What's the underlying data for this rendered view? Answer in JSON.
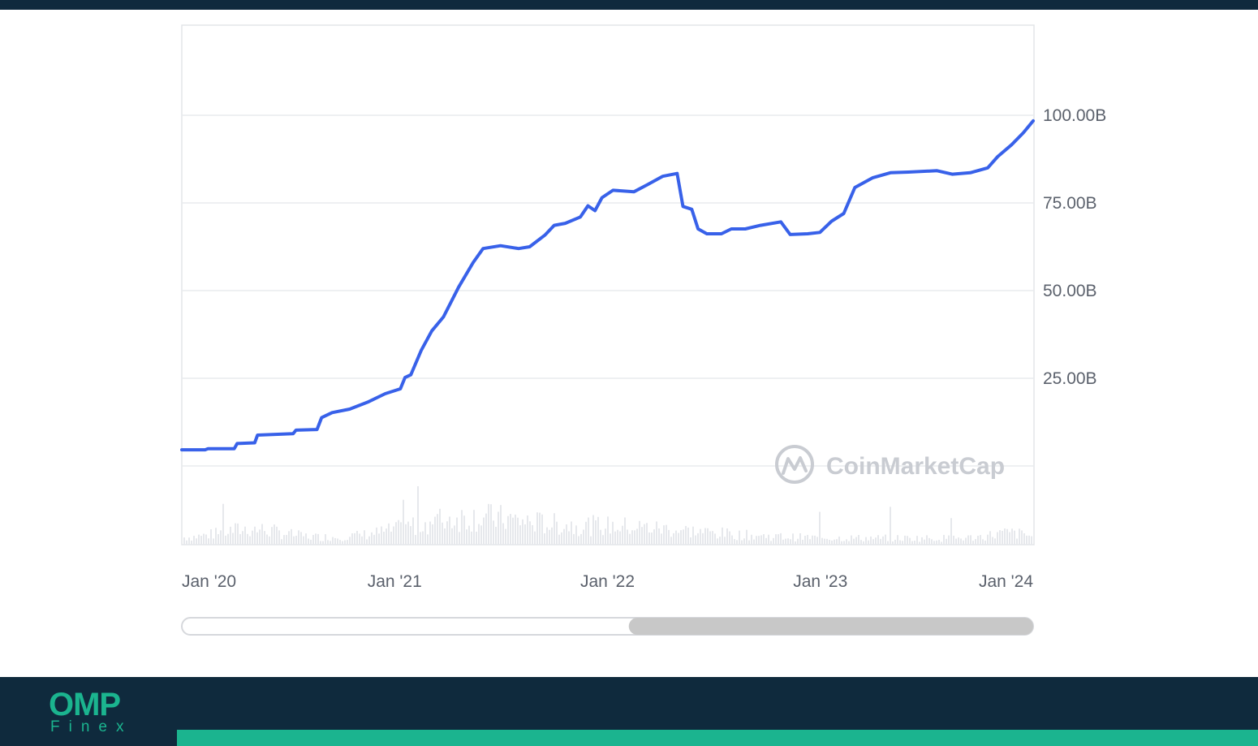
{
  "colors": {
    "brand_dark": "#0f2a3d",
    "accent_green": "#1bb48f",
    "series_line": "#3861e9",
    "volume_bars": "#e6e8ec",
    "gridline": "#e9ebee",
    "scrollbar_thumb": "#c8c8c8"
  },
  "watermark": {
    "text": "CoinMarketCap",
    "icon": "coinmarketcap-logo-icon"
  },
  "brand": {
    "mark": "OMP",
    "word": "Finex"
  },
  "scrollbar": {
    "selection_start_fraction": 0.525,
    "selection_end_fraction": 1.0
  },
  "chart_data": {
    "type": "line",
    "title": "",
    "xlabel": "",
    "ylabel": "",
    "x_ticks": [
      "Jan '20",
      "Jan '21",
      "Jan '22",
      "Jan '23",
      "Jan '24"
    ],
    "y_ticks": [
      "25.00B",
      "50.00B",
      "75.00B",
      "100.00B"
    ],
    "y_tick_values": [
      25,
      50,
      75,
      100
    ],
    "y_unit": "B",
    "xlim": [
      "2020-01-01",
      "2024-01-01"
    ],
    "ylim": [
      0,
      125
    ],
    "y_axis_position": "right",
    "grid": true,
    "legend": "none",
    "series": [
      {
        "color": "#3861e9",
        "points": [
          [
            "2020-01-01",
            4.6
          ],
          [
            "2020-02-10",
            4.6
          ],
          [
            "2020-02-15",
            4.9
          ],
          [
            "2020-03-31",
            4.9
          ],
          [
            "2020-04-05",
            6.4
          ],
          [
            "2020-05-05",
            6.6
          ],
          [
            "2020-05-10",
            8.8
          ],
          [
            "2020-07-10",
            9.2
          ],
          [
            "2020-07-15",
            10.2
          ],
          [
            "2020-08-20",
            10.4
          ],
          [
            "2020-08-28",
            13.8
          ],
          [
            "2020-09-15",
            15.2
          ],
          [
            "2020-10-15",
            16.2
          ],
          [
            "2020-11-15",
            18.2
          ],
          [
            "2020-12-15",
            20.6
          ],
          [
            "2021-01-10",
            22.0
          ],
          [
            "2021-01-18",
            25.2
          ],
          [
            "2021-01-28",
            26.0
          ],
          [
            "2021-02-15",
            33.0
          ],
          [
            "2021-03-05",
            38.5
          ],
          [
            "2021-03-25",
            42.5
          ],
          [
            "2021-04-20",
            51.0
          ],
          [
            "2021-05-15",
            58.0
          ],
          [
            "2021-06-01",
            62.0
          ],
          [
            "2021-07-01",
            62.8
          ],
          [
            "2021-08-01",
            62.0
          ],
          [
            "2021-08-20",
            62.5
          ],
          [
            "2021-09-15",
            65.8
          ],
          [
            "2021-10-01",
            68.6
          ],
          [
            "2021-10-20",
            69.2
          ],
          [
            "2021-11-15",
            71.0
          ],
          [
            "2021-11-28",
            74.2
          ],
          [
            "2021-12-10",
            72.8
          ],
          [
            "2021-12-22",
            76.5
          ],
          [
            "2022-01-10",
            78.6
          ],
          [
            "2022-02-15",
            78.2
          ],
          [
            "2022-03-10",
            80.2
          ],
          [
            "2022-04-05",
            82.6
          ],
          [
            "2022-04-30",
            83.4
          ],
          [
            "2022-05-10",
            74.0
          ],
          [
            "2022-05-25",
            73.2
          ],
          [
            "2022-06-05",
            67.6
          ],
          [
            "2022-06-20",
            66.2
          ],
          [
            "2022-07-15",
            66.2
          ],
          [
            "2022-08-01",
            67.6
          ],
          [
            "2022-08-25",
            67.6
          ],
          [
            "2022-09-20",
            68.6
          ],
          [
            "2022-10-25",
            69.6
          ],
          [
            "2022-11-10",
            66.0
          ],
          [
            "2022-12-10",
            66.2
          ],
          [
            "2022-12-31",
            66.6
          ],
          [
            "2023-01-20",
            69.8
          ],
          [
            "2023-02-10",
            72.0
          ],
          [
            "2023-03-01",
            79.4
          ],
          [
            "2023-04-01",
            82.2
          ],
          [
            "2023-05-01",
            83.6
          ],
          [
            "2023-06-01",
            83.8
          ],
          [
            "2023-07-20",
            84.2
          ],
          [
            "2023-08-15",
            83.2
          ],
          [
            "2023-09-15",
            83.6
          ],
          [
            "2023-10-15",
            85.0
          ],
          [
            "2023-11-01",
            88.2
          ],
          [
            "2023-11-25",
            91.6
          ],
          [
            "2023-12-15",
            95.0
          ],
          [
            "2024-01-01",
            98.4
          ]
        ]
      }
    ]
  }
}
